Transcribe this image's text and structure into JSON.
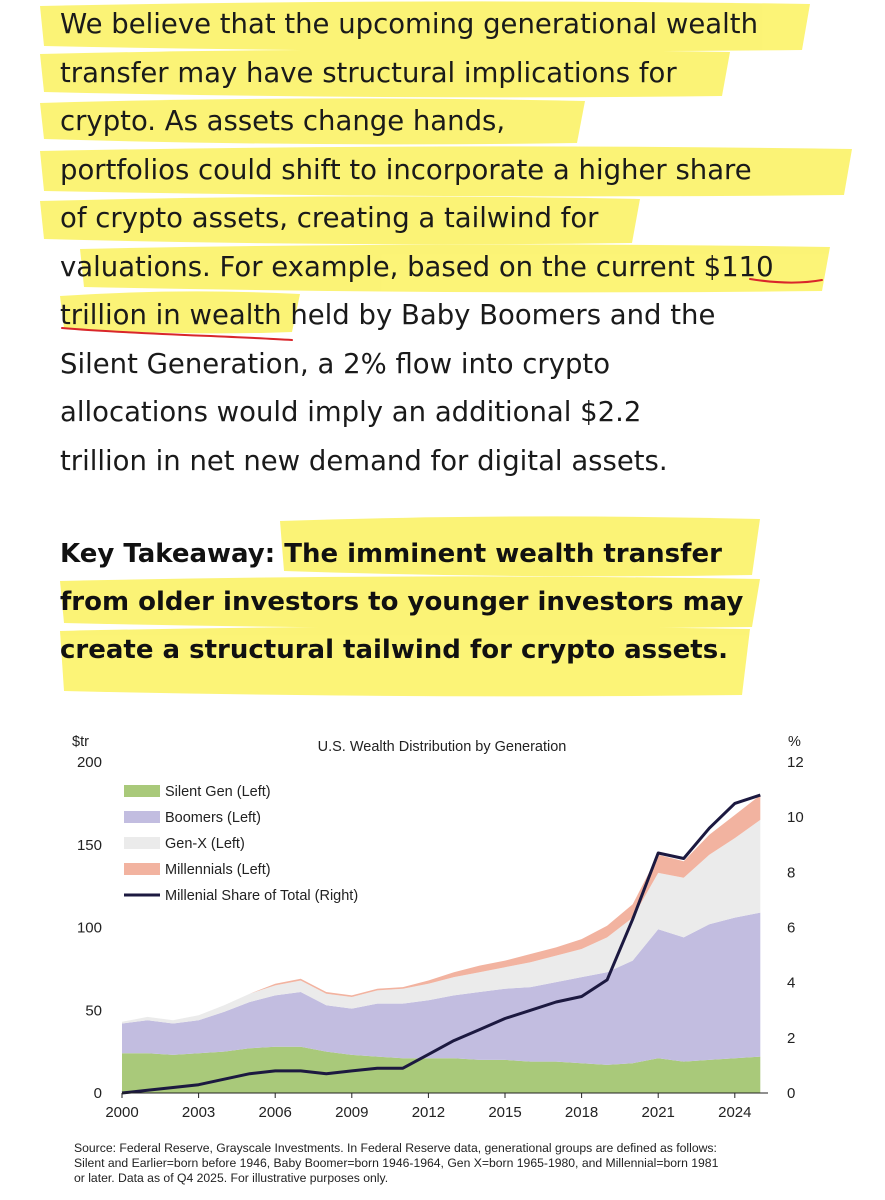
{
  "paragraph": {
    "lines": [
      "We believe that the upcoming generational wealth",
      "transfer may have structural implications for",
      "crypto. As assets change hands,",
      "portfolios could shift to incorporate a higher share",
      "of crypto assets, creating a tailwind for",
      "valuations. For example, based on the current $110",
      "trillion in wealth held by Baby Boomers and the",
      "Silent Generation, a 2% flow into crypto",
      "allocations would imply an additional $2.2",
      "trillion in net new demand for digital assets."
    ]
  },
  "key_takeaway": {
    "label": "Key Takeaway:",
    "lines": [
      "The imminent wealth transfer",
      "from older investors to younger investors may",
      "create a structural tailwind for crypto assets."
    ]
  },
  "colors": {
    "highlight": "#fbf25f",
    "underline": "#d9262b",
    "silent": "#a9c97a",
    "boomers": "#c2bde0",
    "genx": "#ebebeb",
    "millennials": "#f2b3a0",
    "share_line": "#1c1940"
  },
  "chart_data": {
    "type": "area",
    "title": "U.S. Wealth Distribution by Generation",
    "left_axis_unit": "$tr",
    "right_axis_unit": "%",
    "ylim_left": [
      0,
      200
    ],
    "ylim_right": [
      0,
      12
    ],
    "xlim": [
      2000,
      2025.3
    ],
    "x_ticks": [
      2000,
      2003,
      2006,
      2009,
      2012,
      2015,
      2018,
      2021,
      2024
    ],
    "y_ticks_left": [
      0,
      50,
      100,
      150,
      200
    ],
    "y_ticks_right": [
      0,
      2,
      4,
      6,
      8,
      10,
      12
    ],
    "legend_position": "top-left",
    "grid": false,
    "x": [
      2000,
      2001,
      2002,
      2003,
      2004,
      2005,
      2006,
      2007,
      2008,
      2009,
      2010,
      2011,
      2012,
      2013,
      2014,
      2015,
      2016,
      2017,
      2018,
      2019,
      2020,
      2021,
      2022,
      2023,
      2024,
      2025
    ],
    "series": [
      {
        "name": "Silent Gen (Left)",
        "stack": "left",
        "values": [
          24,
          24,
          23,
          24,
          25,
          27,
          28,
          28,
          25,
          23,
          22,
          21,
          21,
          21,
          20,
          20,
          19,
          19,
          18,
          17,
          18,
          21,
          19,
          20,
          21,
          22
        ]
      },
      {
        "name": "Boomers (Left)",
        "stack": "left",
        "values": [
          18,
          20,
          19,
          20,
          24,
          28,
          31,
          33,
          28,
          28,
          32,
          33,
          35,
          38,
          41,
          43,
          45,
          48,
          52,
          56,
          62,
          78,
          75,
          82,
          85,
          87
        ]
      },
      {
        "name": "Gen-X (Left)",
        "stack": "left",
        "values": [
          1,
          2,
          2,
          3,
          4,
          5,
          6,
          7,
          7,
          7,
          8,
          9,
          10,
          11,
          12,
          13,
          15,
          16,
          17,
          21,
          26,
          34,
          36,
          42,
          48,
          56
        ]
      },
      {
        "name": "Millennials (Left)",
        "stack": "left",
        "values": [
          0,
          0,
          0,
          0,
          0,
          0,
          1,
          1,
          1,
          1,
          1,
          1,
          2,
          3,
          4,
          4,
          5,
          5,
          6,
          7,
          8,
          11,
          10,
          12,
          14,
          15
        ]
      },
      {
        "name": "Millenial Share of Total (Right)",
        "stack": "line",
        "values": [
          0.0,
          0.1,
          0.2,
          0.3,
          0.5,
          0.7,
          0.8,
          0.8,
          0.7,
          0.8,
          0.9,
          0.9,
          1.4,
          1.9,
          2.3,
          2.7,
          3.0,
          3.3,
          3.5,
          4.1,
          6.3,
          8.7,
          8.5,
          9.6,
          10.5,
          10.8
        ]
      }
    ]
  },
  "source": {
    "lines": [
      "Source: Federal Reserve, Grayscale Investments. In Federal Reserve data, generational groups are defined as follows:",
      "Silent and Earlier=born before 1946, Baby Boomer=born 1946-1964, Gen X=born 1965-1980, and Millennial=born 1981",
      "or later. Data as of Q4 2025. For illustrative purposes only."
    ]
  }
}
